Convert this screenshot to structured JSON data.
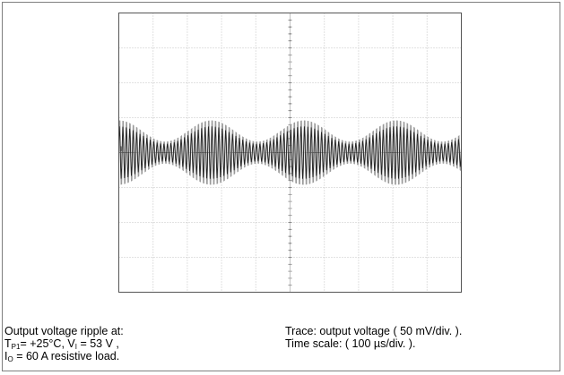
{
  "chart_data": {
    "type": "line",
    "title": "",
    "xlabel": "",
    "ylabel": "",
    "grid": true,
    "divisions": {
      "x": 10,
      "y": 8
    },
    "x_unit": "div",
    "y_unit": "div",
    "xlim": [
      0,
      10
    ],
    "ylim": [
      -4,
      4
    ],
    "channel_marker": "1",
    "series": [
      {
        "carrier_cycles_per_div": 10,
        "envelope_period_div": 2.7,
        "envelope_phase_div": 1.35,
        "envelope_min_div": 0.35,
        "envelope_max_div": 1.05,
        "offset_div": 0.0,
        "color_dark": "#222222",
        "color_light": "#9a9a9a"
      }
    ]
  },
  "caption": {
    "left_line1": "Output voltage ripple  at:",
    "left_line2": {
      "t_sym": "T",
      "t_sub": "P1",
      "t_val": "= +25°C, V",
      "v_sub": "I",
      "v_val": " =  53 V ,"
    },
    "left_line3": {
      "i_sym": "I",
      "i_sub": "O",
      "i_val": " =  60 A  resistive load."
    },
    "right_line1": "Trace: output voltage ( 50 mV/div. ).",
    "right_line2": "Time scale: ( 100 µs/div. )."
  }
}
